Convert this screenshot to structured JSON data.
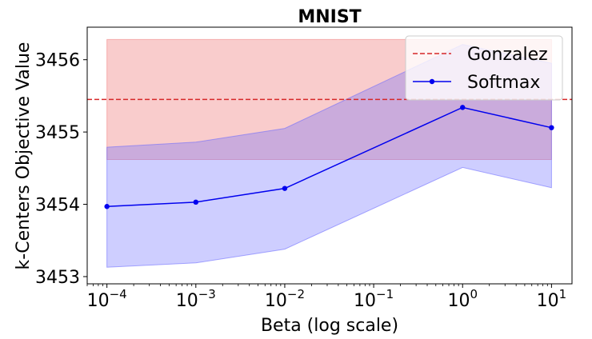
{
  "chart_data": {
    "type": "line",
    "title": "MNIST",
    "xlabel": "Beta (log scale)",
    "ylabel": "k-Centers Objective Value",
    "xscale": "log",
    "xlim": [
      6e-05,
      17
    ],
    "ylim": [
      3452.9,
      3456.45
    ],
    "x_ticks": [
      {
        "base": "10",
        "exp": "−4",
        "value": 0.0001
      },
      {
        "base": "10",
        "exp": "−3",
        "value": 0.001
      },
      {
        "base": "10",
        "exp": "−2",
        "value": 0.01
      },
      {
        "base": "10",
        "exp": "−1",
        "value": 0.1
      },
      {
        "base": "10",
        "exp": "0",
        "value": 1
      },
      {
        "base": "10",
        "exp": "1",
        "value": 10
      }
    ],
    "y_ticks": [
      "3453",
      "3454",
      "3455",
      "3456"
    ],
    "legend_position": "top-right",
    "series": [
      {
        "name": "Gonzalez",
        "style": "dashed",
        "color": "#d62728",
        "value": 3455.45,
        "band": [
          3454.62,
          3456.28
        ],
        "band_color": "#f08080"
      },
      {
        "name": "Softmax",
        "style": "solid-marker",
        "color": "#0000ee",
        "x": [
          0.0001,
          0.001,
          0.01,
          1,
          10
        ],
        "values": [
          3453.97,
          3454.03,
          3454.22,
          3455.34,
          3455.06
        ],
        "lower": [
          3453.13,
          3453.19,
          3453.38,
          3454.51,
          3454.23
        ],
        "upper": [
          3454.79,
          3454.86,
          3455.05,
          3456.21,
          3455.95
        ],
        "band_color": "#6666ff"
      }
    ]
  }
}
